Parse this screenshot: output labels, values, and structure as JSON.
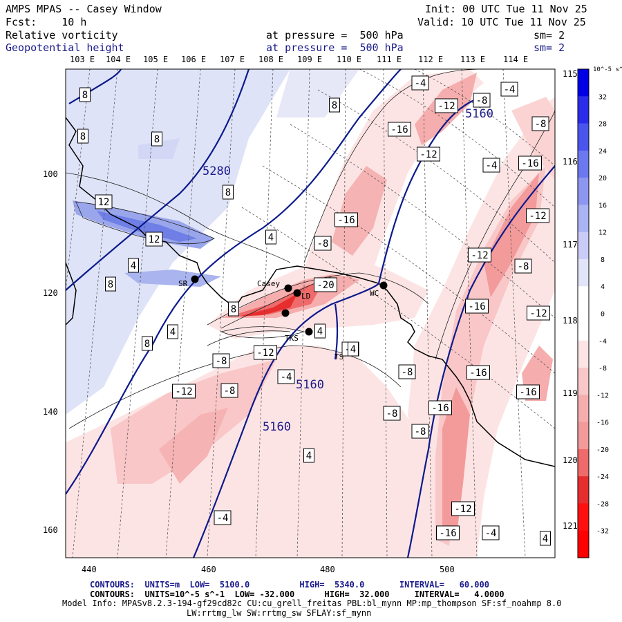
{
  "header": {
    "title": "AMPS MPAS -- Casey Window",
    "forecast": "Fcst:    10 h",
    "init": "Init: 00 UTC Tue 11 Nov 25",
    "valid": "Valid: 10 UTC Tue 11 Nov 25",
    "field1": {
      "name": "Relative vorticity",
      "level": "at pressure =  500 hPa",
      "smooth": "sm= 2"
    },
    "field2": {
      "name": "Geopotential height",
      "level": "at pressure =  500 hPa",
      "smooth": "sm= 2"
    }
  },
  "map": {
    "top_lon_labels": [
      "103 E",
      "104 E",
      "105 E",
      "106 E",
      "107 E",
      "108 E",
      "109 E",
      "110 E",
      "111 E",
      "112 E",
      "113 E",
      "114 E"
    ],
    "right_lon_labels": [
      "115 E",
      "116 E",
      "117 E",
      "118 E",
      "119 E",
      "120 E",
      "121 E"
    ],
    "x_ticks": [
      "440",
      "460",
      "480",
      "500"
    ],
    "y_ticks": [
      "100",
      "120",
      "140",
      "160"
    ],
    "stations": [
      "Casey",
      "SR",
      "LD",
      "TKS",
      "TS",
      "WC"
    ],
    "height_labels": [
      "5280",
      "5160",
      "5160",
      "5160"
    ],
    "vort_labels": [
      "8",
      "8",
      "8",
      "8",
      "8",
      "12",
      "4",
      "8",
      "4",
      "12",
      "8",
      "4",
      "8",
      "4",
      "-4",
      "-4",
      "-12",
      "-8",
      "-8",
      "-12",
      "-8",
      "-4",
      "-8",
      "-16",
      "-20",
      "-16",
      "-12",
      "-12",
      "-16",
      "-8",
      "-16",
      "-4",
      "-8",
      "-4",
      "-16",
      "-12",
      "-12",
      "-8",
      "-16",
      "-12",
      "-8",
      "-4",
      "-8",
      "-16",
      "-12",
      "-16",
      "-4",
      "4",
      "4",
      "4"
    ]
  },
  "colorbar": {
    "unit": "10^-5 s^-1",
    "labels": [
      "32",
      "28",
      "24",
      "20",
      "16",
      "12",
      "8",
      "4",
      "0",
      "-4",
      "-8",
      "-12",
      "-16",
      "-20",
      "-24",
      "-28",
      "-32"
    ]
  },
  "footer": {
    "line1": "CONTOURS:  UNITS=m  LOW=  5100.0          HIGH=  5340.0       INTERVAL=   60.000",
    "line2": "CONTOURS:  UNITS=10^-5 s^-1  LOW= -32.000      HIGH=  32.000     INTERVAL=   4.0000",
    "line3": "Model Info: MPASv8.2.3-194-gf29cd82c CU:cu_grell_freitas PBL:bl_mynn MP:mp_thompson SF:sf_noahmp 8.0",
    "line4": "LW:rrtmg_lw SW:rrtmg_sw SFLAY:sf_mynn"
  },
  "colors": {
    "navy": "#1a1a8c",
    "red_max": "#ff0000",
    "blue_max": "#0000e6",
    "line_navy": "#0b1a8c"
  }
}
